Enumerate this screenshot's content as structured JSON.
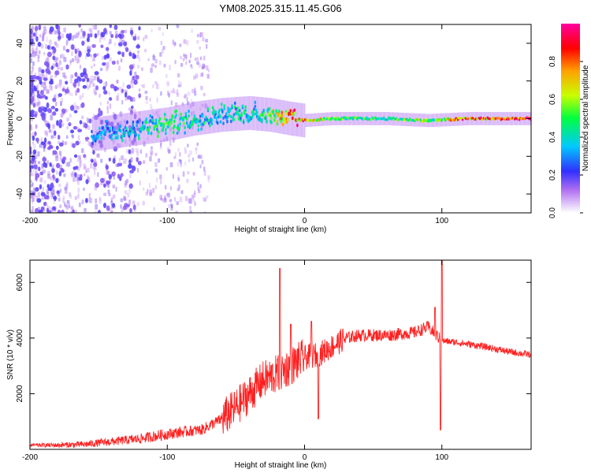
{
  "title": "YM08.2025.315.11.45.G06",
  "chart_data": [
    {
      "type": "heatmap",
      "title": "YM08.2025.315.11.45.G06",
      "xlabel": "Height of straight line (km)",
      "ylabel": "Frequency (Hz)",
      "xlim": [
        -200,
        165
      ],
      "ylim": [
        -50,
        50
      ],
      "xticks": [
        -200,
        -100,
        0,
        100
      ],
      "xticklabels": [
        "-200",
        "-100",
        "0",
        "100"
      ],
      "yticks": [
        -40,
        -20,
        0,
        20,
        40
      ],
      "yticklabels": [
        "-40",
        "-20",
        "0",
        "20",
        "40"
      ],
      "trace": {
        "description_points_km_hz": [
          [
            -150,
            -8
          ],
          [
            -120,
            -5
          ],
          [
            -100,
            -3
          ],
          [
            -80,
            0
          ],
          [
            -60,
            2
          ],
          [
            -40,
            3
          ],
          [
            -25,
            2
          ],
          [
            -10,
            0
          ],
          [
            0,
            -1
          ],
          [
            20,
            0
          ],
          [
            60,
            0
          ],
          [
            90,
            -1
          ],
          [
            120,
            0
          ],
          [
            165,
            0
          ]
        ],
        "core_amplitude": [
          [
            -150,
            0.3
          ],
          [
            -120,
            0.4
          ],
          [
            -100,
            0.5
          ],
          [
            -60,
            0.4
          ],
          [
            -30,
            0.45
          ],
          [
            -10,
            0.9
          ],
          [
            0,
            0.8
          ],
          [
            20,
            0.55
          ],
          [
            60,
            0.5
          ],
          [
            80,
            0.6
          ],
          [
            100,
            0.55
          ],
          [
            110,
            0.85
          ],
          [
            165,
            0.9
          ]
        ]
      },
      "colorbar": {
        "label": "Normalized spectral amplitude",
        "ticks": [
          0.0,
          0.2,
          0.4,
          0.6,
          0.8
        ],
        "ticklabels": [
          "0.0",
          "0.2",
          "0.4",
          "0.6",
          "0.8"
        ],
        "range": [
          0,
          1
        ],
        "colors": [
          "#ffffff",
          "#8a2be2",
          "#3030ff",
          "#00c8ff",
          "#00ff40",
          "#c8ff00",
          "#ffa000",
          "#ff0000",
          "#ff00a0"
        ]
      }
    },
    {
      "type": "line",
      "xlabel": "Height of straight line (km)",
      "ylabel": "SNR (10 * v/v)",
      "xlim": [
        -200,
        165
      ],
      "ylim": [
        0,
        6800
      ],
      "xticks": [
        -200,
        -100,
        0,
        100
      ],
      "xticklabels": [
        "-200",
        "-100",
        "0",
        "100"
      ],
      "yticks": [
        2000,
        4000,
        6000
      ],
      "yticklabels": [
        "2000",
        "4000",
        "6000"
      ],
      "series": [
        {
          "name": "SNR",
          "color": "#ff2020",
          "x": [
            -200,
            -180,
            -160,
            -140,
            -120,
            -100,
            -85,
            -75,
            -60,
            -50,
            -40,
            -30,
            -20,
            -10,
            0,
            10,
            20,
            30,
            40,
            60,
            80,
            90,
            100,
            110,
            130,
            150,
            165
          ],
          "y": [
            150,
            150,
            180,
            280,
            380,
            550,
            650,
            700,
            1100,
            1500,
            2000,
            2500,
            2700,
            3000,
            3300,
            3400,
            3700,
            4000,
            4100,
            4100,
            4200,
            4400,
            3900,
            3850,
            3700,
            3500,
            3400
          ],
          "spikes": [
            [
              -18,
              6500
            ],
            [
              -10,
              4500
            ],
            [
              5,
              4600
            ],
            [
              10,
              1100
            ],
            [
              95,
              5100
            ],
            [
              100,
              6800
            ],
            [
              99,
              700
            ]
          ]
        }
      ]
    }
  ]
}
